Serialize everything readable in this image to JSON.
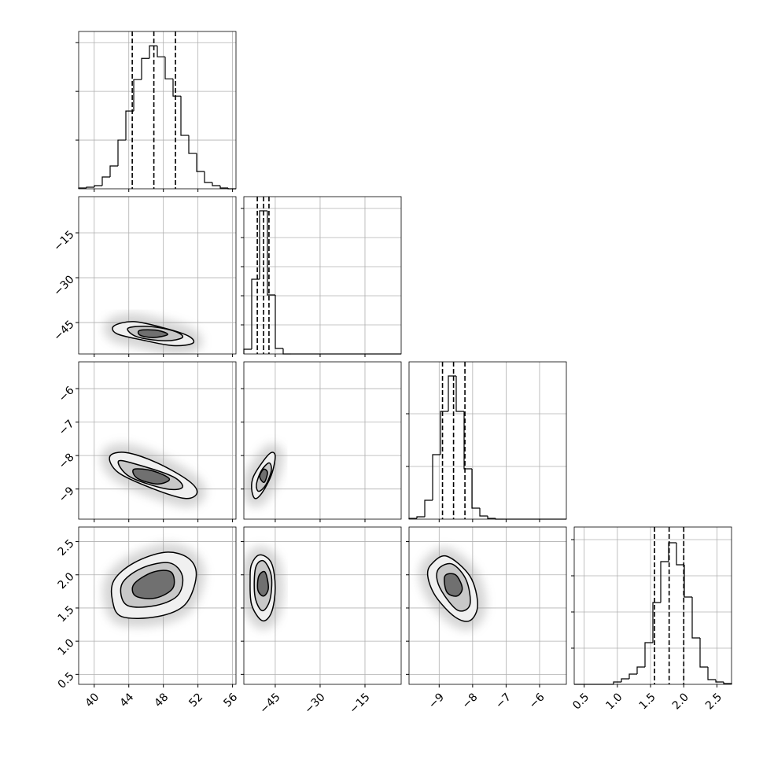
{
  "chart_data": {
    "type": "corner",
    "grid": true,
    "color": "#000000",
    "parameters": [
      {
        "lim": [
          38.2,
          56.4
        ],
        "ticks": [
          40,
          44,
          48,
          52,
          56
        ]
      },
      {
        "lim": [
          -55.5,
          -2.9
        ],
        "ticks": [
          {
            "value": -45,
            "label": "−45"
          },
          {
            "value": -30,
            "label": "−30"
          },
          {
            "value": -15,
            "label": "−15"
          }
        ]
      },
      {
        "lim": [
          -9.9,
          -5.2
        ],
        "ticks": [
          {
            "value": -9,
            "label": "−9"
          },
          {
            "value": -8,
            "label": "−8"
          },
          {
            "value": -7,
            "label": "−7"
          },
          {
            "value": -6,
            "label": "−6"
          }
        ]
      },
      {
        "lim": [
          0.35,
          2.72
        ],
        "ticks": [
          0.5,
          {
            "value": 1,
            "label": "1.0"
          },
          1.5,
          {
            "value": 2,
            "label": "2.0"
          },
          2.5
        ]
      }
    ],
    "histograms": [
      {
        "bins": [
          38.2,
          39.11,
          40.02,
          40.93,
          41.84,
          42.75,
          43.66,
          44.57,
          45.48,
          46.39,
          47.3,
          48.21,
          49.12,
          50.03,
          50.94,
          51.85,
          52.76,
          53.67,
          54.58,
          55.49,
          56.4
        ],
        "values": [
          16,
          32,
          65,
          242,
          468,
          1000,
          1597,
          2242,
          2677,
          2935,
          2710,
          2258,
          1903,
          1097,
          726,
          355,
          129,
          65,
          16,
          0
        ],
        "ylim": [
          0,
          3230
        ],
        "yticks": [
          1000,
          2000,
          3000
        ],
        "quantiles": [
          44.4,
          46.9,
          49.4
        ]
      },
      {
        "bins": [
          -55.5,
          -52.87,
          -50.24,
          -47.61,
          -44.98,
          -42.35,
          -39.72,
          -37.09,
          -34.46,
          -31.83,
          -29.2,
          -26.57,
          -23.94,
          -21.31,
          -18.68,
          -16.05,
          -13.42,
          -10.79,
          -8.16,
          -5.53,
          -2.9
        ],
        "values": [
          324,
          5135,
          9838,
          4054,
          378,
          0,
          0,
          0,
          0,
          0,
          0,
          0,
          0,
          0,
          0,
          0,
          0,
          0,
          0,
          0
        ],
        "ylim": [
          0,
          10811
        ],
        "yticks": [
          2000,
          4000,
          6000,
          8000,
          10000
        ],
        "quantiles": [
          -51.0,
          -48.9,
          -47.1
        ]
      },
      {
        "bins": [
          -9.9,
          -9.665,
          -9.43,
          -9.195,
          -8.96,
          -8.725,
          -8.49,
          -8.255,
          -8.02,
          -7.785,
          -7.55,
          -7.315,
          -7.08,
          -6.845,
          -6.61,
          -6.375,
          -6.14,
          -5.905,
          -5.67,
          -5.435,
          -5.2
        ],
        "values": [
          30,
          90,
          716,
          2448,
          4090,
          5433,
          4090,
          1910,
          418,
          119,
          30,
          0,
          0,
          0,
          0,
          0,
          0,
          0,
          0,
          0
        ],
        "ylim": [
          0,
          5970
        ],
        "yticks": [
          2000,
          4000
        ],
        "quantiles": [
          -8.9,
          -8.57,
          -8.23
        ]
      },
      {
        "bins": [
          0.35,
          0.4685,
          0.587,
          0.7055,
          0.824,
          0.9425,
          1.061,
          1.1795,
          1.298,
          1.4165,
          1.535,
          1.6535,
          1.772,
          1.8905,
          2.009,
          2.1275,
          2.246,
          2.3645,
          2.483,
          2.6015,
          2.72
        ],
        "values": [
          0,
          0,
          0,
          0,
          0,
          65,
          152,
          283,
          478,
          1152,
          2261,
          3391,
          3913,
          3304,
          2413,
          1283,
          478,
          130,
          65,
          22
        ],
        "ylim": [
          0,
          4348
        ],
        "yticks": [
          1000,
          2000,
          3000,
          4000
        ],
        "quantiles": [
          1.56,
          1.78,
          2.0
        ]
      }
    ],
    "contour_panels": [
      {
        "contours": [
          {
            "x": [
              42.3,
              44.6,
              48.2,
              50.9,
              51.4,
              49.1,
              45.5,
              42.6
            ],
            "y": [
              -46.1,
              -44.7,
              -46.9,
              -49.5,
              -51.9,
              -52.7,
              -50.8,
              -48.7
            ]
          },
          {
            "x": [
              43.9,
              46.4,
              49.3,
              50.2,
              48.2,
              45.0
            ],
            "y": [
              -46.9,
              -46.3,
              -47.9,
              -50.0,
              -51.1,
              -49.8
            ]
          },
          {
            "x": [
              45.3,
              47.3,
              48.5,
              46.8,
              45.3
            ],
            "y": [
              -47.6,
              -47.6,
              -49.0,
              -50.0,
              -49.2
            ]
          }
        ]
      },
      {
        "contours": [
          {
            "x": [
              41.8,
              43.7,
              47.3,
              50.9,
              51.9,
              50.5,
              46.8,
              42.8
            ],
            "y": [
              -8.03,
              -7.91,
              -8.22,
              -8.75,
              -9.11,
              -9.28,
              -8.99,
              -8.51
            ]
          },
          {
            "x": [
              42.8,
              45.0,
              49.1,
              50.2,
              48.2,
              44.1
            ],
            "y": [
              -8.17,
              -8.27,
              -8.63,
              -8.95,
              -8.99,
              -8.63
            ]
          },
          {
            "x": [
              44.6,
              46.8,
              48.7,
              47.3,
              45.0
            ],
            "y": [
              -8.41,
              -8.46,
              -8.7,
              -8.85,
              -8.68
            ]
          }
        ]
      },
      {
        "contours": [
          {
            "x": [
              -52.9,
              -52.3,
              -48.9,
              -46.3,
              -45.0,
              -46.3,
              -49.4,
              -51.8
            ],
            "y": [
              -8.99,
              -8.63,
              -8.15,
              -7.91,
              -8.03,
              -8.58,
              -9.11,
              -9.28
            ]
          },
          {
            "x": [
              -51.3,
              -49.7,
              -47.1,
              -46.3,
              -48.1,
              -50.5
            ],
            "y": [
              -8.87,
              -8.46,
              -8.22,
              -8.44,
              -8.87,
              -9.07
            ]
          },
          {
            "x": [
              -50.2,
              -48.9,
              -47.6,
              -48.7
            ],
            "y": [
              -8.63,
              -8.41,
              -8.51,
              -8.8
            ]
          }
        ]
      },
      {
        "contours": [
          {
            "x": [
              42.3,
              44.6,
              48.2,
              50.9,
              51.8,
              50.5,
              47.3,
              43.2,
              42.1
            ],
            "y": [
              1.92,
              2.18,
              2.34,
              2.25,
              1.98,
              1.55,
              1.37,
              1.37,
              1.62
            ]
          },
          {
            "x": [
              43.2,
              45.5,
              48.7,
              50.2,
              49.6,
              46.8,
              43.7
            ],
            "y": [
              1.86,
              2.1,
              2.18,
              1.98,
              1.68,
              1.53,
              1.55
            ]
          },
          {
            "x": [
              44.6,
              46.8,
              48.9,
              49.1,
              47.1,
              44.8
            ],
            "y": [
              1.86,
              2.04,
              2.04,
              1.8,
              1.65,
              1.68
            ]
          }
        ]
      },
      {
        "contours": [
          {
            "x": [
              -52.9,
              -50.2,
              -46.3,
              -45.0,
              -46.3,
              -49.4,
              -52.9,
              -53.4
            ],
            "y": [
              2.16,
              2.3,
              2.18,
              1.8,
              1.43,
              1.31,
              1.55,
              1.92
            ]
          },
          {
            "x": [
              -51.6,
              -48.9,
              -46.3,
              -46.8,
              -49.4,
              -51.8
            ],
            "y": [
              2.1,
              2.21,
              1.98,
              1.62,
              1.46,
              1.68
            ]
          },
          {
            "x": [
              -50.5,
              -48.4,
              -47.3,
              -48.9,
              -50.8
            ],
            "y": [
              1.98,
              2.04,
              1.8,
              1.68,
              1.77
            ]
          }
        ]
      },
      {
        "contours": [
          {
            "x": [
              -9.23,
              -8.77,
              -8.08,
              -7.85,
              -8.08,
              -8.54,
              -9.11,
              -9.34
            ],
            "y": [
              2.16,
              2.28,
              1.98,
              1.55,
              1.31,
              1.37,
              1.68,
              1.98
            ]
          },
          {
            "x": [
              -9.0,
              -8.6,
              -8.19,
              -8.08,
              -8.42,
              -8.83,
              -9.06
            ],
            "y": [
              2.1,
              2.16,
              1.92,
              1.55,
              1.46,
              1.68,
              1.92
            ]
          },
          {
            "x": [
              -8.83,
              -8.51,
              -8.31,
              -8.47,
              -8.77
            ],
            "y": [
              1.98,
              2.0,
              1.8,
              1.68,
              1.74
            ]
          }
        ]
      }
    ]
  }
}
